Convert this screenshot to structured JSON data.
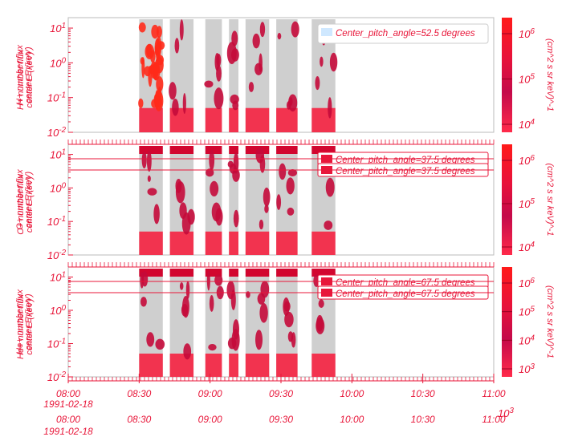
{
  "colors": {
    "accent": "#e8173a",
    "gray_block": "#cfcfcf",
    "band": "#f2334f",
    "blob": "#c40a3a",
    "colorbar_stops": [
      "#ff1a1a",
      "#e8123a",
      "#c40a4a",
      "#e8173a",
      "#ff2a4a"
    ]
  },
  "chart_data": [
    {
      "type": "heatmap",
      "panel": "H+",
      "ylabel_lines": [
        "H+ number flux",
        "center E (keV)"
      ],
      "ylabel_overlay": [
        "H+ number flux",
        "center E (keV)"
      ],
      "ylim": [
        0.01,
        20
      ],
      "yscale": "log",
      "yticks": [
        "10^-2",
        "10^-1",
        "10^0",
        "10^1"
      ],
      "legend": [
        "Center_pitch_angle=52.5 degrees"
      ],
      "data_blocks": [
        [
          "08:30",
          "08:40"
        ],
        [
          "08:43",
          "08:53"
        ],
        [
          "08:58",
          "09:05"
        ],
        [
          "09:08",
          "09:12"
        ],
        [
          "09:15",
          "09:25"
        ],
        [
          "09:28",
          "09:37"
        ],
        [
          "09:43",
          "09:53"
        ]
      ],
      "colorbar": {
        "ticks": [
          "10^4",
          "10^5",
          "10^6"
        ],
        "label": "(cm^2 s sr keV)^-1"
      }
    },
    {
      "type": "heatmap",
      "panel": "O+",
      "ylabel_lines": [
        "O+ number flux",
        "center E (keV)"
      ],
      "ylabel_overlay": [
        "O+ number flux",
        "center E (keV)"
      ],
      "ylim": [
        0.01,
        20
      ],
      "yscale": "log",
      "yticks": [
        "10^-2",
        "10^-1",
        "10^0",
        "10^1"
      ],
      "legend": [
        "Center_pitch_angle=37.5 degrees",
        "Center_pitch_angle=37.5 degrees"
      ],
      "data_blocks": [
        [
          "08:30",
          "08:40"
        ],
        [
          "08:43",
          "08:53"
        ],
        [
          "08:58",
          "09:05"
        ],
        [
          "09:08",
          "09:12"
        ],
        [
          "09:15",
          "09:25"
        ],
        [
          "09:28",
          "09:37"
        ],
        [
          "09:43",
          "09:53"
        ]
      ],
      "colorbar": {
        "ticks": [
          "10^4",
          "10^5",
          "10^6"
        ],
        "label": "(cm^2 s sr keV)^-1"
      }
    },
    {
      "type": "heatmap",
      "panel": "He+",
      "ylabel_lines": [
        "He+ number flux",
        "center E (keV)"
      ],
      "ylabel_overlay": [
        "He+ number flux",
        "center E (keV)"
      ],
      "ylim": [
        0.01,
        20
      ],
      "yscale": "log",
      "yticks": [
        "10^-2",
        "10^-1",
        "10^0",
        "10^1"
      ],
      "legend": [
        "Center_pitch_angle=67.5 degrees",
        "Center_pitch_angle=67.5 degrees"
      ],
      "data_blocks": [
        [
          "08:30",
          "08:40"
        ],
        [
          "08:43",
          "08:53"
        ],
        [
          "08:58",
          "09:05"
        ],
        [
          "09:08",
          "09:12"
        ],
        [
          "09:15",
          "09:25"
        ],
        [
          "09:28",
          "09:37"
        ],
        [
          "09:43",
          "09:53"
        ]
      ],
      "colorbar": {
        "ticks": [
          "10^3",
          "10^4",
          "10^5",
          "10^6"
        ],
        "label": "(cm^2 s sr keV)^-1"
      }
    }
  ],
  "x_axis": {
    "ticks": [
      "08:00",
      "08:30",
      "09:00",
      "09:30",
      "10:00",
      "10:30",
      "11:00"
    ],
    "date": "1991-02-18",
    "range": [
      "08:00",
      "11:00"
    ]
  }
}
